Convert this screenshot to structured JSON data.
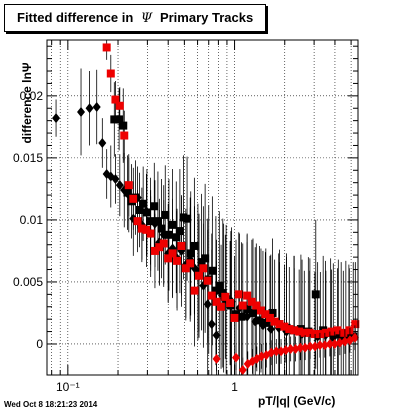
{
  "page": {
    "title_prefix": "Fitted difference in",
    "title_symbol": "Ψ",
    "title_suffix": "Primary Tracks",
    "footer_text": "Wed Oct  8 18:21:23 2014"
  },
  "chart_data": {
    "type": "scatter",
    "xlabel": "pT/|q| (GeV/c)",
    "ylabel": "difference lnΨ",
    "xscale": "log",
    "xlim": [
      0.075,
      5.5
    ],
    "ylim": [
      -0.0025,
      0.0245
    ],
    "grid": true,
    "yticks": [
      0,
      0.005,
      0.01,
      0.015,
      0.02
    ],
    "ytick_labels": [
      "0",
      "0.005",
      "0.01",
      "0.015",
      "0.02"
    ],
    "xticks": [
      0.1,
      1
    ],
    "xtick_labels": [
      "10⁻¹",
      "1"
    ],
    "colors": {
      "black": "#000000",
      "red": "#ee0000"
    },
    "series": [
      {
        "color": "black",
        "marker": "diamond",
        "points": [
          [
            0.085,
            0.0182,
            0.0015
          ],
          [
            0.12,
            0.0187,
            0.0035
          ],
          [
            0.135,
            0.019,
            0.003
          ],
          [
            0.149,
            0.0191,
            0.003
          ],
          [
            0.161,
            0.0162,
            0.002
          ],
          [
            0.171,
            0.0137,
            0.002
          ],
          [
            0.181,
            0.0135,
            0.0025
          ],
          [
            0.193,
            0.0133,
            0.002
          ],
          [
            0.205,
            0.0128,
            0.0025
          ],
          [
            0.218,
            0.0124,
            0.003
          ],
          [
            0.232,
            0.012,
            0.003
          ],
          [
            0.247,
            0.0101,
            0.003
          ],
          [
            0.262,
            0.0118,
            0.0025
          ],
          [
            0.278,
            0.0096,
            0.003
          ],
          [
            0.296,
            0.0107,
            0.003
          ],
          [
            0.314,
            0.0089,
            0.0035
          ],
          [
            0.333,
            0.0097,
            0.0035
          ],
          [
            0.354,
            0.0082,
            0.0035
          ],
          [
            0.376,
            0.0088,
            0.004
          ],
          [
            0.4,
            0.0073,
            0.004
          ],
          [
            0.425,
            0.0077,
            0.004
          ],
          [
            0.452,
            0.0069,
            0.004
          ],
          [
            0.48,
            0.0075,
            0.0045
          ],
          [
            0.51,
            0.0064,
            0.0045
          ],
          [
            0.542,
            0.0068,
            0.005
          ],
          [
            0.576,
            0.0061,
            0.005
          ],
          [
            0.612,
            0.0055,
            0.005
          ],
          [
            0.65,
            0.0047,
            0.005
          ],
          [
            0.69,
            0.0032,
            0.006
          ],
          [
            0.73,
            0.0016,
            0.006
          ],
          [
            0.78,
            0.0007,
            0.006
          ],
          [
            0.86,
            0.0037,
            0.006
          ],
          [
            0.96,
            0.0034,
            0.006
          ],
          [
            1.07,
            0.0029,
            0.006
          ],
          [
            1.19,
            0.0022,
            0.006
          ],
          [
            1.33,
            0.0018,
            0.006
          ],
          [
            1.48,
            0.0015,
            0.006
          ],
          [
            1.65,
            0.0012,
            0.006
          ],
          [
            1.84,
            0.0013,
            0.006
          ],
          [
            2.05,
            0.001,
            0.006
          ],
          [
            2.28,
            0.0011,
            0.006
          ],
          [
            2.54,
            0.0008,
            0.006
          ],
          [
            2.83,
            0.0009,
            0.006
          ],
          [
            3.15,
            0.0006,
            0.006
          ],
          [
            3.51,
            0.0007,
            0.006
          ],
          [
            3.91,
            0.0005,
            0.006
          ],
          [
            4.36,
            0.0006,
            0.006
          ],
          [
            4.85,
            0.0004,
            0.006
          ]
        ]
      },
      {
        "color": "black",
        "marker": "square",
        "points": [
          [
            0.19,
            0.0181,
            0.003
          ],
          [
            0.203,
            0.0181,
            0.0025
          ],
          [
            0.215,
            0.0176,
            0.003
          ],
          [
            0.228,
            0.0122,
            0.003
          ],
          [
            0.241,
            0.0115,
            0.003
          ],
          [
            0.255,
            0.0118,
            0.003
          ],
          [
            0.269,
            0.0108,
            0.003
          ],
          [
            0.283,
            0.0113,
            0.003
          ],
          [
            0.298,
            0.0106,
            0.0035
          ],
          [
            0.313,
            0.0099,
            0.0035
          ],
          [
            0.33,
            0.0111,
            0.0035
          ],
          [
            0.347,
            0.0099,
            0.004
          ],
          [
            0.365,
            0.0093,
            0.004
          ],
          [
            0.384,
            0.0104,
            0.004
          ],
          [
            0.404,
            0.0088,
            0.0045
          ],
          [
            0.425,
            0.0096,
            0.0045
          ],
          [
            0.447,
            0.0086,
            0.0045
          ],
          [
            0.47,
            0.0091,
            0.005
          ],
          [
            0.494,
            0.0102,
            0.005
          ],
          [
            0.519,
            0.0101,
            0.005
          ],
          [
            0.546,
            0.0073,
            0.005
          ],
          [
            0.574,
            0.0079,
            0.0055
          ],
          [
            0.603,
            0.0058,
            0.0055
          ],
          [
            0.634,
            0.0066,
            0.0055
          ],
          [
            0.666,
            0.0069,
            0.006
          ],
          [
            0.7,
            0.0052,
            0.006
          ],
          [
            0.736,
            0.0059,
            0.006
          ],
          [
            0.773,
            0.0043,
            0.006
          ],
          [
            0.81,
            0.0047,
            0.006
          ],
          [
            0.85,
            0.0041,
            0.006
          ],
          [
            0.89,
            0.0036,
            0.006
          ],
          [
            0.95,
            0.0031,
            0.006
          ],
          [
            1.02,
            0.0024,
            0.006
          ],
          [
            1.1,
            0.0022,
            0.006
          ],
          [
            1.19,
            0.0028,
            0.006
          ],
          [
            1.29,
            0.0025,
            0.006
          ],
          [
            1.41,
            0.0019,
            0.006
          ],
          [
            1.54,
            0.0017,
            0.006
          ],
          [
            1.69,
            0.0025,
            0.006
          ],
          [
            1.86,
            0.0016,
            0.006
          ],
          [
            2.05,
            0.0013,
            0.006
          ],
          [
            2.27,
            0.0011,
            0.006
          ],
          [
            2.5,
            0.0012,
            0.006
          ],
          [
            2.77,
            0.001,
            0.006
          ],
          [
            3.07,
            0.004,
            0.006
          ],
          [
            3.4,
            0.0011,
            0.006
          ],
          [
            3.77,
            0.0009,
            0.006
          ],
          [
            4.19,
            0.0008,
            0.006
          ],
          [
            4.65,
            0.0007,
            0.006
          ],
          [
            5.15,
            0.0006,
            0.006
          ]
        ]
      },
      {
        "color": "red",
        "marker": "square",
        "points": [
          [
            0.171,
            0.0239,
            0.001
          ],
          [
            0.181,
            0.0218,
            0.0015
          ],
          [
            0.193,
            0.0197,
            0.0015
          ],
          [
            0.205,
            0.0192,
            0.0015
          ],
          [
            0.218,
            0.0168,
            0.002
          ],
          [
            0.232,
            0.0128,
            0.0025
          ],
          [
            0.247,
            0.0117,
            0.0025
          ],
          [
            0.262,
            0.0099,
            0.0025
          ],
          [
            0.278,
            0.0093,
            0.0025
          ],
          [
            0.296,
            0.0092,
            0.003
          ],
          [
            0.314,
            0.0089,
            0.003
          ],
          [
            0.333,
            0.0075,
            0.003
          ],
          [
            0.354,
            0.0078,
            0.003
          ],
          [
            0.376,
            0.0081,
            0.0035
          ],
          [
            0.4,
            0.0069,
            0.0035
          ],
          [
            0.425,
            0.0073,
            0.0035
          ],
          [
            0.452,
            0.0067,
            0.004
          ],
          [
            0.48,
            0.0079,
            0.004
          ],
          [
            0.51,
            0.0061,
            0.004
          ],
          [
            0.542,
            0.0065,
            0.0045
          ],
          [
            0.576,
            0.0043,
            0.0045
          ],
          [
            0.612,
            0.0055,
            0.0045
          ],
          [
            0.65,
            0.0061,
            0.005
          ],
          [
            0.69,
            0.0051,
            0.005
          ],
          [
            0.73,
            0.0039,
            0.005
          ],
          [
            0.78,
            0.0034,
            0.005
          ],
          [
            0.83,
            0.003,
            0.005
          ],
          [
            0.88,
            0.0038,
            0.005
          ],
          [
            0.94,
            0.0033,
            0.005
          ],
          [
            1.0,
            0.0021,
            0.005
          ],
          [
            1.06,
            0.004,
            0.005
          ],
          [
            1.12,
            0.0031,
            0.005
          ],
          [
            1.19,
            0.0039,
            0.005
          ],
          [
            1.27,
            0.0034,
            0.005
          ],
          [
            1.35,
            0.0031,
            0.005
          ],
          [
            1.44,
            0.0027,
            0.005
          ],
          [
            1.53,
            0.0024,
            0.005
          ],
          [
            1.63,
            0.0021,
            0.005
          ],
          [
            1.74,
            0.0018,
            0.005
          ],
          [
            1.86,
            0.0016,
            0.005
          ],
          [
            1.99,
            0.0014,
            0.005
          ],
          [
            2.13,
            0.0012,
            0.005
          ],
          [
            2.28,
            0.0011,
            0.005
          ],
          [
            2.44,
            0.001,
            0.005
          ],
          [
            2.62,
            0.0009,
            0.005
          ],
          [
            2.82,
            0.0009,
            0.005
          ],
          [
            3.03,
            0.0008,
            0.005
          ],
          [
            3.27,
            0.0008,
            0.005
          ],
          [
            3.53,
            0.0009,
            0.005
          ],
          [
            3.82,
            0.001,
            0.005
          ],
          [
            4.14,
            0.0011,
            0.005
          ],
          [
            4.49,
            0.0009,
            0.005
          ],
          [
            4.88,
            0.0011,
            0.005
          ],
          [
            5.3,
            0.0016,
            0.005
          ]
        ]
      },
      {
        "color": "red",
        "marker": "diamond",
        "points": [
          [
            0.78,
            -0.0012,
            0.001
          ],
          [
            1.02,
            -0.0011,
            0.001
          ],
          [
            1.12,
            -0.0021,
            0.001
          ],
          [
            1.2,
            -0.0016,
            0.001
          ],
          [
            1.28,
            -0.0014,
            0.001
          ],
          [
            1.36,
            -0.0012,
            0.001
          ],
          [
            1.45,
            -0.001,
            0.001
          ],
          [
            1.55,
            -0.0009,
            0.001
          ],
          [
            1.66,
            -0.0007,
            0.001
          ],
          [
            1.78,
            -0.0006,
            0.001
          ],
          [
            1.9,
            -0.0006,
            0.001
          ],
          [
            2.03,
            -0.0005,
            0.001
          ],
          [
            2.17,
            -0.0004,
            0.001
          ],
          [
            2.32,
            -0.0004,
            0.001
          ],
          [
            2.48,
            -0.0003,
            0.001
          ],
          [
            2.65,
            -0.0003,
            0.001
          ],
          [
            2.84,
            -0.0002,
            0.001
          ],
          [
            3.04,
            -0.0002,
            0.001
          ],
          [
            3.25,
            -0.0001,
            0.001
          ],
          [
            3.48,
            -0.0001,
            0.001
          ],
          [
            3.73,
            0.0,
            0.001
          ],
          [
            3.99,
            0.0,
            0.001
          ],
          [
            4.28,
            0.0001,
            0.001
          ],
          [
            4.59,
            0.0002,
            0.001
          ],
          [
            4.92,
            0.0003,
            0.001
          ],
          [
            5.27,
            0.0005,
            0.001
          ]
        ]
      }
    ]
  }
}
